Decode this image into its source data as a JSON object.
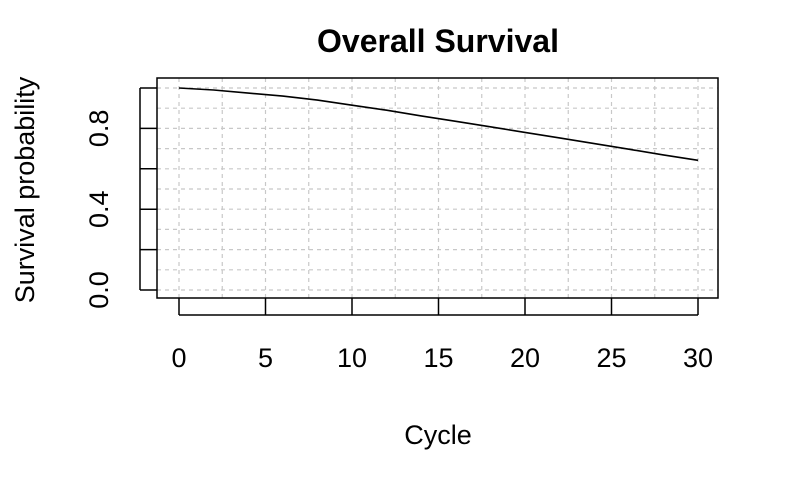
{
  "chart_data": {
    "type": "line",
    "title": "Overall Survival",
    "xlabel": "Cycle",
    "ylabel": "Survival probability",
    "xlim": [
      0,
      30
    ],
    "ylim": [
      0,
      1
    ],
    "x_ticks": [
      0,
      5,
      10,
      15,
      20,
      25,
      30
    ],
    "x_tick_labels": [
      "0",
      "5",
      "10",
      "15",
      "20",
      "25",
      "30"
    ],
    "y_ticks": [
      0,
      0.2,
      0.4,
      0.6,
      0.8,
      1.0
    ],
    "y_tick_labels": [
      "0.0",
      "",
      "0.4",
      "",
      "0.8",
      ""
    ],
    "grid": true,
    "grid_x": [
      0,
      2.5,
      5,
      7.5,
      10,
      12.5,
      15,
      17.5,
      20,
      22.5,
      25,
      27.5,
      30
    ],
    "grid_y": [
      0,
      0.1,
      0.2,
      0.3,
      0.4,
      0.5,
      0.6,
      0.7,
      0.8,
      0.9,
      1.0
    ],
    "series": [
      {
        "x": [
          0,
          2,
          4,
          6,
          8,
          10,
          12,
          14,
          16,
          18,
          20,
          22,
          24,
          26,
          28,
          30
        ],
        "values": [
          1.0,
          0.99,
          0.975,
          0.96,
          0.94,
          0.915,
          0.89,
          0.862,
          0.835,
          0.808,
          0.78,
          0.753,
          0.725,
          0.697,
          0.669,
          0.642
        ]
      }
    ]
  }
}
